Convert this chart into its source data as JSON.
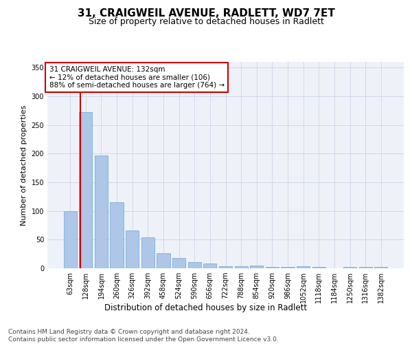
{
  "title_line1": "31, CRAIGWEIL AVENUE, RADLETT, WD7 7ET",
  "title_line2": "Size of property relative to detached houses in Radlett",
  "xlabel": "Distribution of detached houses by size in Radlett",
  "ylabel": "Number of detached properties",
  "bar_labels": [
    "63sqm",
    "128sqm",
    "194sqm",
    "260sqm",
    "326sqm",
    "392sqm",
    "458sqm",
    "524sqm",
    "590sqm",
    "656sqm",
    "722sqm",
    "788sqm",
    "854sqm",
    "920sqm",
    "986sqm",
    "1052sqm",
    "1118sqm",
    "1184sqm",
    "1250sqm",
    "1316sqm",
    "1382sqm"
  ],
  "bar_values": [
    100,
    272,
    197,
    115,
    66,
    54,
    27,
    18,
    11,
    8,
    4,
    4,
    5,
    3,
    3,
    4,
    2,
    0,
    3,
    3,
    2
  ],
  "bar_color": "#aec6e8",
  "bar_edge_color": "#7aaed6",
  "annotation_box_text": "31 CRAIGWEIL AVENUE: 132sqm\n← 12% of detached houses are smaller (106)\n88% of semi-detached houses are larger (764) →",
  "annotation_box_color": "#cc0000",
  "vline_color": "#cc0000",
  "ylim": [
    0,
    360
  ],
  "yticks": [
    0,
    50,
    100,
    150,
    200,
    250,
    300,
    350
  ],
  "grid_color": "#d0d8e8",
  "background_color": "#eef2f8",
  "footer_text": "Contains HM Land Registry data © Crown copyright and database right 2024.\nContains public sector information licensed under the Open Government Licence v3.0.",
  "title_fontsize": 11,
  "subtitle_fontsize": 9,
  "xlabel_fontsize": 8.5,
  "ylabel_fontsize": 8,
  "tick_fontsize": 7,
  "footer_fontsize": 6.5,
  "ann_fontsize": 7.5
}
